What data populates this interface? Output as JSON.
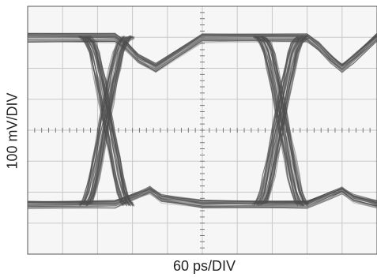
{
  "chart_data": {
    "type": "line",
    "title": "",
    "xlabel": "60 ps/DIV",
    "ylabel": "100 mV/DIV",
    "grid": true,
    "grid_divisions": {
      "x": 10,
      "y": 8
    },
    "x_unit": "ps",
    "x_per_div": 60,
    "y_unit": "mV",
    "y_per_div": 100,
    "xlim": [
      0,
      600
    ],
    "ylim": [
      -400,
      400
    ],
    "series": [
      {
        "role": "logic-high-rail",
        "x": [
          0,
          150,
          170,
          190,
          220,
          300,
          480,
          500,
          520,
          540,
          560,
          600
        ],
        "y": [
          298,
          298,
          270,
          230,
          200,
          298,
          298,
          270,
          230,
          200,
          230,
          298
        ]
      },
      {
        "role": "logic-low-rail",
        "x": [
          0,
          150,
          190,
          210,
          230,
          300,
          480,
          520,
          540,
          560,
          600
        ],
        "y": [
          -240,
          -240,
          -210,
          -195,
          -220,
          -240,
          -240,
          -210,
          -195,
          -220,
          -240
        ]
      },
      {
        "role": "rising-edges",
        "x": [
          96,
          102,
          108,
          114,
          120,
          126,
          132,
          138,
          144,
          150,
          156,
          162,
          168,
          174
        ],
        "y": [
          -240,
          -230,
          -200,
          -150,
          -90,
          -30,
          30,
          90,
          150,
          200,
          250,
          280,
          296,
          300
        ]
      },
      {
        "role": "falling-edges",
        "x": [
          96,
          102,
          108,
          114,
          120,
          126,
          132,
          138,
          144,
          150,
          156,
          162,
          168,
          174
        ],
        "y": [
          300,
          296,
          280,
          250,
          200,
          150,
          90,
          30,
          -30,
          -90,
          -150,
          -200,
          -230,
          -240
        ]
      }
    ],
    "eye_openings": [
      {
        "start_ps": 150,
        "end_ps": 450
      }
    ],
    "colors": {
      "trace": "#4e4e4e",
      "trace_light": "#9a9a9a",
      "grid": "#c8c8c8",
      "frame": "#555555",
      "background": "#f6f6f6"
    }
  }
}
